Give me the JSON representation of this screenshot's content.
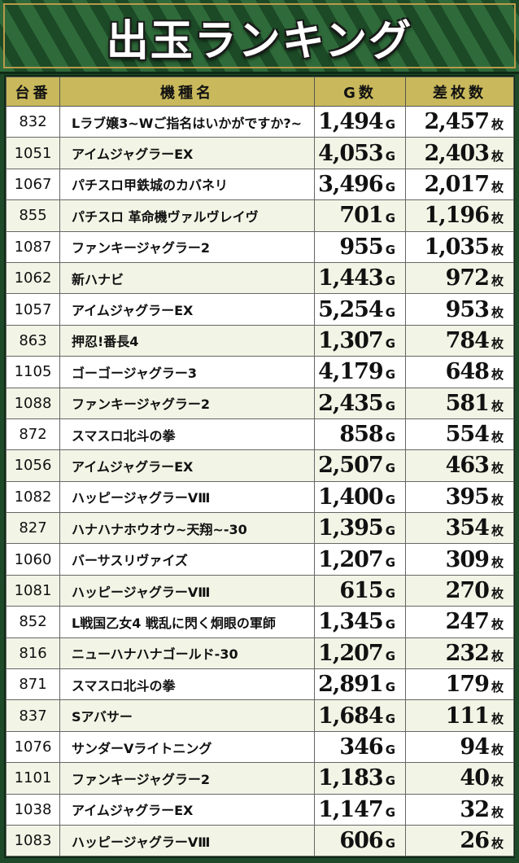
{
  "title": "出玉ランキング",
  "columns": [
    "台番",
    "機種名",
    "G数",
    "差枚数"
  ],
  "units": {
    "games": "G",
    "coins": "枚"
  },
  "rows": [
    {
      "machine_no": "832",
      "name": "Lラブ嬢3~Wご指名はいかがですか?~",
      "games": "1,494",
      "coins": "2,457"
    },
    {
      "machine_no": "1051",
      "name": "アイムジャグラーEX",
      "games": "4,053",
      "coins": "2,403"
    },
    {
      "machine_no": "1067",
      "name": "パチスロ甲鉄城のカバネリ",
      "games": "3,496",
      "coins": "2,017"
    },
    {
      "machine_no": "855",
      "name": "パチスロ 革命機ヴァルヴレイヴ",
      "games": "701",
      "coins": "1,196"
    },
    {
      "machine_no": "1087",
      "name": "ファンキージャグラー2",
      "games": "955",
      "coins": "1,035"
    },
    {
      "machine_no": "1062",
      "name": "新ハナビ",
      "games": "1,443",
      "coins": "972"
    },
    {
      "machine_no": "1057",
      "name": "アイムジャグラーEX",
      "games": "5,254",
      "coins": "953"
    },
    {
      "machine_no": "863",
      "name": "押忍!番長4",
      "games": "1,307",
      "coins": "784"
    },
    {
      "machine_no": "1105",
      "name": "ゴーゴージャグラー3",
      "games": "4,179",
      "coins": "648"
    },
    {
      "machine_no": "1088",
      "name": "ファンキージャグラー2",
      "games": "2,435",
      "coins": "581"
    },
    {
      "machine_no": "872",
      "name": "スマスロ北斗の拳",
      "games": "858",
      "coins": "554"
    },
    {
      "machine_no": "1056",
      "name": "アイムジャグラーEX",
      "games": "2,507",
      "coins": "463"
    },
    {
      "machine_no": "1082",
      "name": "ハッピージャグラーVⅢ",
      "games": "1,400",
      "coins": "395"
    },
    {
      "machine_no": "827",
      "name": "ハナハナホウオウ~天翔~-30",
      "games": "1,395",
      "coins": "354"
    },
    {
      "machine_no": "1060",
      "name": "バーサスリヴァイズ",
      "games": "1,207",
      "coins": "309"
    },
    {
      "machine_no": "1081",
      "name": "ハッピージャグラーVⅢ",
      "games": "615",
      "coins": "270"
    },
    {
      "machine_no": "852",
      "name": "L戦国乙女4 戦乱に閃く炯眼の軍師",
      "games": "1,345",
      "coins": "247"
    },
    {
      "machine_no": "816",
      "name": "ニューハナハナゴールド-30",
      "games": "1,207",
      "coins": "232"
    },
    {
      "machine_no": "871",
      "name": "スマスロ北斗の拳",
      "games": "2,891",
      "coins": "179"
    },
    {
      "machine_no": "837",
      "name": "Sアバサー",
      "games": "1,684",
      "coins": "111"
    },
    {
      "machine_no": "1076",
      "name": "サンダーVライトニング",
      "games": "346",
      "coins": "94"
    },
    {
      "machine_no": "1101",
      "name": "ファンキージャグラー2",
      "games": "1,183",
      "coins": "40"
    },
    {
      "machine_no": "1038",
      "name": "アイムジャグラーEX",
      "games": "1,147",
      "coins": "32"
    },
    {
      "machine_no": "1083",
      "name": "ハッピージャグラーVⅢ",
      "games": "606",
      "coins": "26"
    }
  ]
}
